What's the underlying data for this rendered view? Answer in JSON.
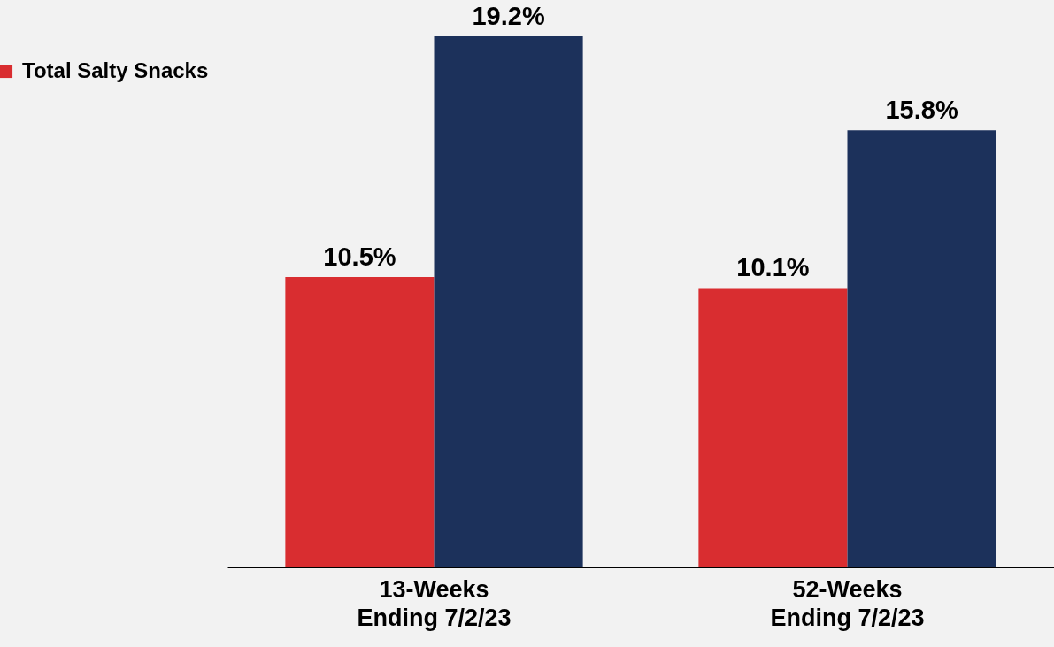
{
  "chart_data": {
    "type": "bar",
    "categories": [
      "13-Weeks\nEnding 7/2/23",
      "52-Weeks\nEnding 7/2/23"
    ],
    "series": [
      {
        "name": "Total Salty Snacks",
        "color": "#d92d30",
        "values": [
          10.5,
          10.1
        ],
        "value_labels": [
          "10.5%",
          "10.1%"
        ]
      },
      {
        "color": "#1c315b",
        "values": [
          19.2,
          15.8
        ],
        "value_labels": [
          "19.2%",
          "15.8%"
        ]
      }
    ],
    "legend": "top left",
    "grid": false
  }
}
